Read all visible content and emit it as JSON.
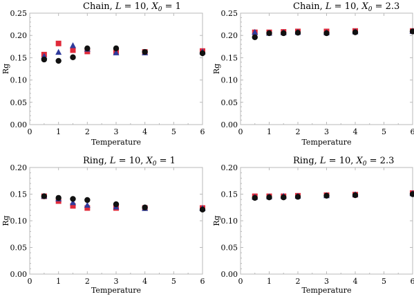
{
  "colors": {
    "red_series": "#e02a3a",
    "blue_series": "#2f3b9c",
    "black_series": "#111111",
    "frame": "#b8b8b8"
  },
  "chart_data": [
    {
      "type": "scatter",
      "title": "Chain, L = 10, X0 = 1",
      "title_parts": {
        "prefix": "Chain, ",
        "var_l": "L",
        "eq_l": " = 10, ",
        "var_x": "X",
        "sub_x": "0",
        "eq_x": " = 1"
      },
      "xlabel": "Temperature",
      "ylabel": "Rg",
      "xlim": [
        0,
        6
      ],
      "ylim": [
        0,
        0.25
      ],
      "xticks": [
        0,
        1,
        2,
        3,
        4,
        5,
        6
      ],
      "xtick_labels": [
        "0",
        "1",
        "2",
        "3",
        "4",
        "5",
        "6"
      ],
      "yticks": [
        0,
        0.05,
        0.1,
        0.15,
        0.2,
        0.25
      ],
      "ytick_labels": [
        "0.00",
        "0.05",
        "0.10",
        "0.15",
        "0.20",
        "0.25"
      ],
      "grid": false,
      "x": [
        0.5,
        1,
        1.5,
        2,
        3,
        4,
        6
      ],
      "series": [
        {
          "marker": "square",
          "color_key": "red_series",
          "values": [
            0.157,
            0.182,
            0.167,
            0.164,
            0.163,
            0.163,
            0.165
          ]
        },
        {
          "marker": "triangle",
          "color_key": "blue_series",
          "values": [
            0.153,
            0.162,
            0.177,
            0.169,
            0.161,
            0.161,
            0.163
          ]
        },
        {
          "marker": "circle",
          "color_key": "black_series",
          "values": [
            0.146,
            0.143,
            0.151,
            0.171,
            0.171,
            0.163,
            0.16
          ]
        }
      ]
    },
    {
      "type": "scatter",
      "title": "Chain, L = 10, X0 = 2.3",
      "title_parts": {
        "prefix": "Chain, ",
        "var_l": "L",
        "eq_l": " = 10, ",
        "var_x": "X",
        "sub_x": "0",
        "eq_x": " = 2.3"
      },
      "xlabel": "Temperature",
      "ylabel": "Rg",
      "xlim": [
        0,
        6
      ],
      "ylim": [
        0,
        0.25
      ],
      "xticks": [
        0,
        1,
        2,
        3,
        4,
        5,
        6
      ],
      "xtick_labels": [
        "0",
        "1",
        "2",
        "3",
        "4",
        "5",
        "6"
      ],
      "yticks": [
        0,
        0.05,
        0.1,
        0.15,
        0.2,
        0.25
      ],
      "ytick_labels": [
        "0.00",
        "0.05",
        "0.10",
        "0.15",
        "0.20",
        "0.25"
      ],
      "grid": false,
      "x": [
        0.5,
        1,
        1.5,
        2,
        3,
        4,
        6
      ],
      "series": [
        {
          "marker": "square",
          "color_key": "red_series",
          "values": [
            0.207,
            0.207,
            0.208,
            0.209,
            0.209,
            0.21,
            0.21
          ]
        },
        {
          "marker": "triangle",
          "color_key": "blue_series",
          "values": [
            0.207,
            0.205,
            0.206,
            0.207,
            0.206,
            0.208,
            0.209
          ]
        },
        {
          "marker": "circle",
          "color_key": "black_series",
          "values": [
            0.196,
            0.205,
            0.205,
            0.206,
            0.205,
            0.207,
            0.209
          ]
        }
      ]
    },
    {
      "type": "scatter",
      "title": "Ring, L = 10, X0 = 1",
      "title_parts": {
        "prefix": "Ring, ",
        "var_l": "L",
        "eq_l": " = 10, ",
        "var_x": "X",
        "sub_x": "0",
        "eq_x": " = 1"
      },
      "xlabel": "Temperature",
      "ylabel": "Rg",
      "xlim": [
        0,
        6
      ],
      "ylim": [
        0,
        0.2
      ],
      "xticks": [
        0,
        1,
        2,
        3,
        4,
        5,
        6
      ],
      "xtick_labels": [
        "0",
        "1",
        "2",
        "3",
        "4",
        "5",
        "6"
      ],
      "yticks": [
        0,
        0.05,
        0.1,
        0.15,
        0.2
      ],
      "ytick_labels": [
        "0.00",
        "0.05",
        "0.10",
        "0.15",
        "0.20"
      ],
      "grid": false,
      "x": [
        0.5,
        1,
        1.5,
        2,
        3,
        4,
        6
      ],
      "series": [
        {
          "marker": "square",
          "color_key": "red_series",
          "values": [
            0.146,
            0.137,
            0.128,
            0.124,
            0.124,
            0.124,
            0.124
          ]
        },
        {
          "marker": "triangle",
          "color_key": "blue_series",
          "values": [
            0.146,
            0.141,
            0.134,
            0.129,
            0.126,
            0.123,
            0.123
          ]
        },
        {
          "marker": "circle",
          "color_key": "black_series",
          "values": [
            0.146,
            0.143,
            0.141,
            0.139,
            0.131,
            0.125,
            0.121
          ]
        }
      ]
    },
    {
      "type": "scatter",
      "title": "Ring, L = 10, X0 = 2.3",
      "title_parts": {
        "prefix": "Ring, ",
        "var_l": "L",
        "eq_l": " = 10, ",
        "var_x": "X",
        "sub_x": "0",
        "eq_x": " = 2.3"
      },
      "xlabel": "Temperature",
      "ylabel": "Rg",
      "xlim": [
        0,
        6
      ],
      "ylim": [
        0,
        0.2
      ],
      "xticks": [
        0,
        1,
        2,
        3,
        4,
        5,
        6
      ],
      "xtick_labels": [
        "0",
        "1",
        "2",
        "3",
        "4",
        "5",
        "6"
      ],
      "yticks": [
        0,
        0.05,
        0.1,
        0.15,
        0.2
      ],
      "ytick_labels": [
        "0.00",
        "0.05",
        "0.10",
        "0.15",
        "0.20"
      ],
      "grid": false,
      "x": [
        0.5,
        1,
        1.5,
        2,
        3,
        4,
        6
      ],
      "series": [
        {
          "marker": "square",
          "color_key": "red_series",
          "values": [
            0.146,
            0.146,
            0.146,
            0.147,
            0.148,
            0.149,
            0.152
          ]
        },
        {
          "marker": "triangle",
          "color_key": "blue_series",
          "values": [
            0.144,
            0.145,
            0.146,
            0.146,
            0.147,
            0.149,
            0.151
          ]
        },
        {
          "marker": "circle",
          "color_key": "black_series",
          "values": [
            0.143,
            0.144,
            0.144,
            0.145,
            0.147,
            0.148,
            0.15
          ]
        }
      ]
    }
  ]
}
